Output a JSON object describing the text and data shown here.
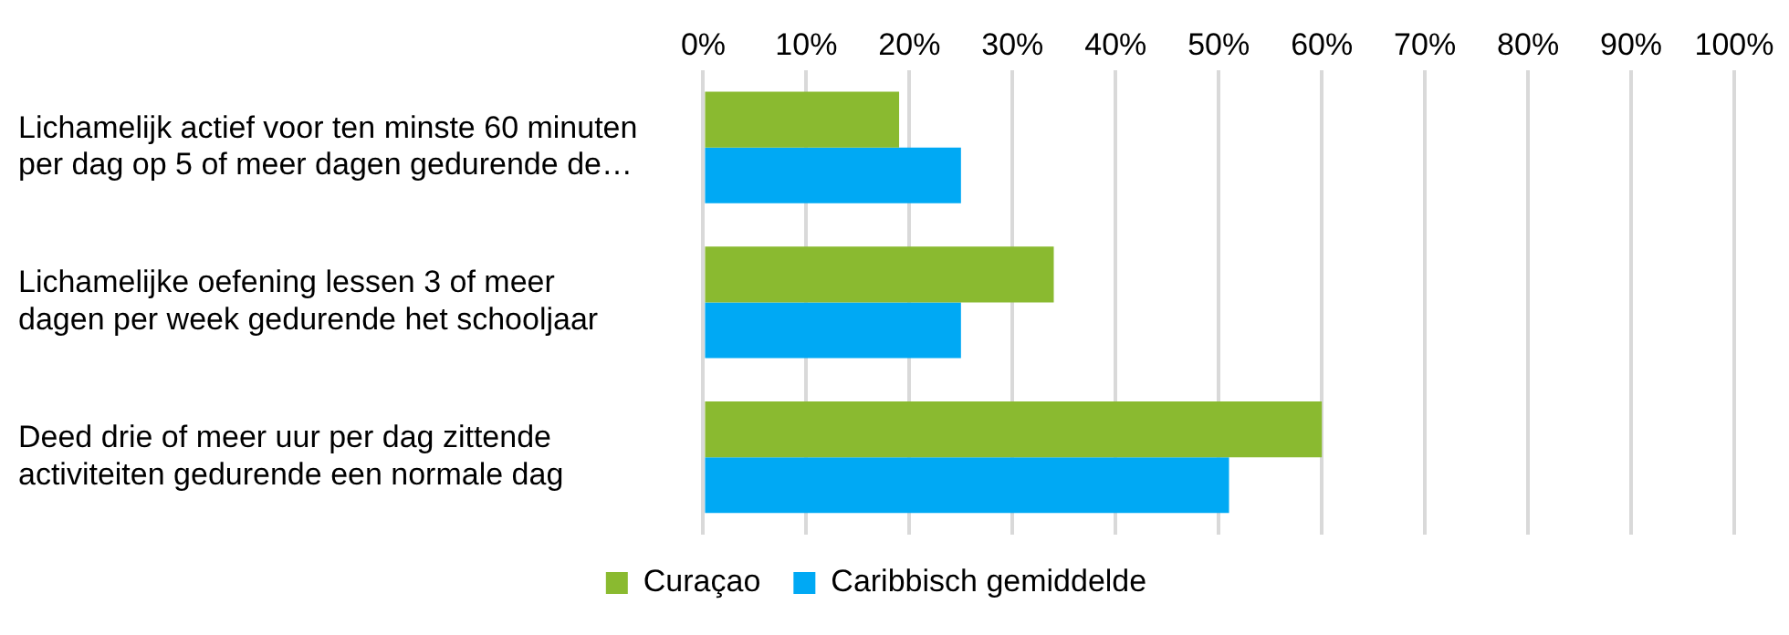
{
  "chart_data": {
    "type": "bar",
    "orientation": "horizontal",
    "categories": [
      "Lichamelijk actief voor ten minste 60 minuten\nper dag op 5 of meer dagen gedurende de…",
      "Lichamelijke oefening lessen 3 of meer\ndagen per week gedurende het schooljaar",
      "Deed drie of meer uur per dag zittende\nactiviteiten gedurende een normale dag"
    ],
    "series": [
      {
        "name": "Curaçao",
        "color": "#8aba30",
        "values": [
          19,
          34,
          60
        ]
      },
      {
        "name": "Caribbisch gemiddelde",
        "color": "#00a9f4",
        "values": [
          25,
          25,
          51
        ]
      }
    ],
    "xlim": [
      0,
      100
    ],
    "xticks": [
      {
        "value": 0,
        "label": "0%"
      },
      {
        "value": 10,
        "label": "10%"
      },
      {
        "value": 20,
        "label": "20%"
      },
      {
        "value": 30,
        "label": "30%"
      },
      {
        "value": 40,
        "label": "40%"
      },
      {
        "value": 50,
        "label": "50%"
      },
      {
        "value": 60,
        "label": "60%"
      },
      {
        "value": 70,
        "label": "70%"
      },
      {
        "value": 80,
        "label": "80%"
      },
      {
        "value": 90,
        "label": "90%"
      },
      {
        "value": 100,
        "label": "100%"
      }
    ],
    "grid": "x",
    "legend": "bottom"
  }
}
